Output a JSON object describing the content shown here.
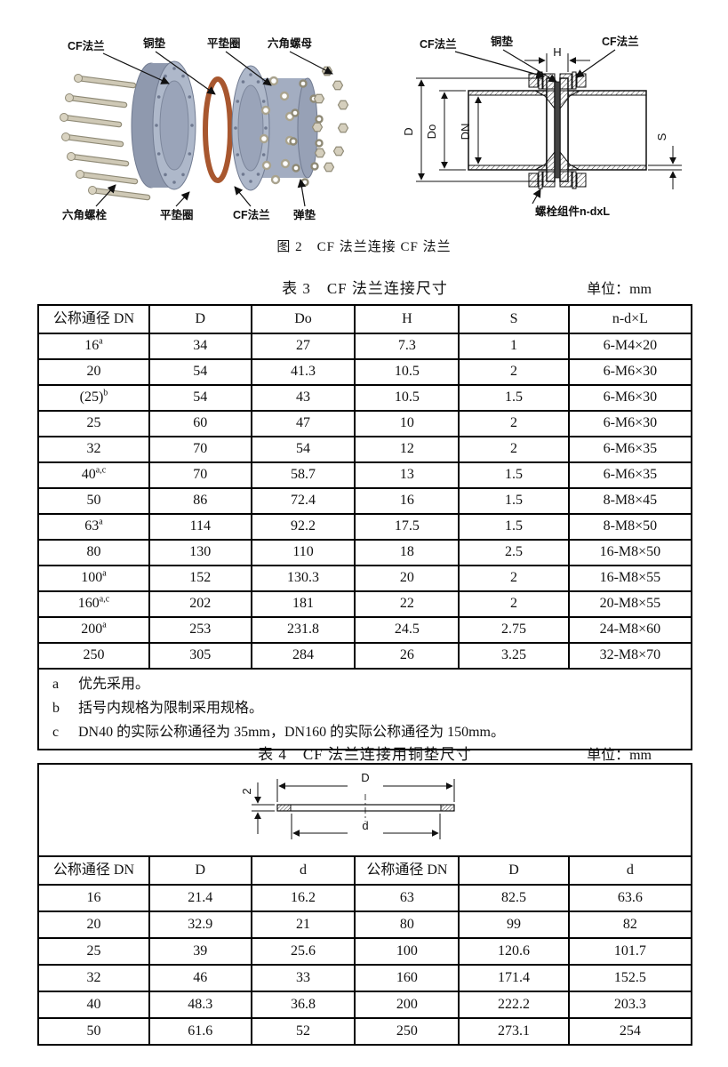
{
  "figure": {
    "caption": "图 2　CF 法兰连接 CF 法兰",
    "exploded": {
      "labels_top": [
        "CF法兰",
        "铜垫",
        "平垫圈",
        "六角螺母"
      ],
      "labels_bottom": [
        "六角螺栓",
        "平垫圈",
        "CF法兰",
        "弹垫"
      ]
    },
    "section": {
      "label_flange_left": "CF法兰",
      "label_gasket": "铜垫",
      "label_flange_right": "CF法兰",
      "dim_h": "H",
      "dim_d": "D",
      "dim_do": "Do",
      "dim_dn": "DN",
      "dim_s": "S",
      "label_bolt_assembly": "螺栓组件n-dxL"
    }
  },
  "table3": {
    "title": "表 3　CF 法兰连接尺寸",
    "unit_label": "单位：mm",
    "headers": [
      "公称通径 DN",
      "D",
      "Do",
      "H",
      "S",
      "n-d×L"
    ],
    "rows": [
      {
        "dn": "16",
        "sup": "a",
        "vals": [
          "34",
          "27",
          "7.3",
          "1",
          "6-M4×20"
        ]
      },
      {
        "dn": "20",
        "sup": "",
        "vals": [
          "54",
          "41.3",
          "10.5",
          "2",
          "6-M6×30"
        ]
      },
      {
        "dn": "(25)",
        "sup": "b",
        "vals": [
          "54",
          "43",
          "10.5",
          "1.5",
          "6-M6×30"
        ]
      },
      {
        "dn": "25",
        "sup": "",
        "vals": [
          "60",
          "47",
          "10",
          "2",
          "6-M6×30"
        ]
      },
      {
        "dn": "32",
        "sup": "",
        "vals": [
          "70",
          "54",
          "12",
          "2",
          "6-M6×35"
        ]
      },
      {
        "dn": "40",
        "sup": "a,c",
        "vals": [
          "70",
          "58.7",
          "13",
          "1.5",
          "6-M6×35"
        ]
      },
      {
        "dn": "50",
        "sup": "",
        "vals": [
          "86",
          "72.4",
          "16",
          "1.5",
          "8-M8×45"
        ]
      },
      {
        "dn": "63",
        "sup": "a",
        "vals": [
          "114",
          "92.2",
          "17.5",
          "1.5",
          "8-M8×50"
        ]
      },
      {
        "dn": "80",
        "sup": "",
        "vals": [
          "130",
          "110",
          "18",
          "2.5",
          "16-M8×50"
        ]
      },
      {
        "dn": "100",
        "sup": "a",
        "vals": [
          "152",
          "130.3",
          "20",
          "2",
          "16-M8×55"
        ]
      },
      {
        "dn": "160",
        "sup": "a,c",
        "vals": [
          "202",
          "181",
          "22",
          "2",
          "20-M8×55"
        ]
      },
      {
        "dn": "200",
        "sup": "a",
        "vals": [
          "253",
          "231.8",
          "24.5",
          "2.75",
          "24-M8×60"
        ]
      },
      {
        "dn": "250",
        "sup": "",
        "vals": [
          "305",
          "284",
          "26",
          "3.25",
          "32-M8×70"
        ]
      }
    ],
    "footnotes": [
      {
        "key": "a",
        "text": "优先采用。"
      },
      {
        "key": "b",
        "text": "括号内规格为限制采用规格。"
      },
      {
        "key": "c",
        "text": "DN40 的实际公称通径为 35mm，DN160 的实际公称通径为 150mm。"
      }
    ]
  },
  "table4": {
    "title": "表 4　CF 法兰连接用铜垫尺寸",
    "unit_label": "单位：mm",
    "diagram": {
      "dim_outer": "D",
      "dim_inner": "d",
      "dim_thickness": "2"
    },
    "headers": [
      "公称通径 DN",
      "D",
      "d",
      "公称通径 DN",
      "D",
      "d"
    ],
    "rows": [
      [
        "16",
        "21.4",
        "16.2",
        "63",
        "82.5",
        "63.6"
      ],
      [
        "20",
        "32.9",
        "21",
        "80",
        "99",
        "82"
      ],
      [
        "25",
        "39",
        "25.6",
        "100",
        "120.6",
        "101.7"
      ],
      [
        "32",
        "46",
        "33",
        "160",
        "171.4",
        "152.5"
      ],
      [
        "40",
        "48.3",
        "36.8",
        "200",
        "222.2",
        "203.3"
      ],
      [
        "50",
        "61.6",
        "52",
        "250",
        "273.1",
        "254"
      ]
    ]
  },
  "colors": {
    "flange": "#aeb8ca",
    "flange_dark": "#8f99ae",
    "hardware": "#cfc9b6",
    "copper": "#a8572f",
    "line": "#1a1a1a"
  }
}
